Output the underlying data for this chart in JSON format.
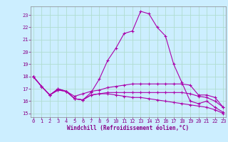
{
  "xlabel": "Windchill (Refroidissement éolien,°C)",
  "background_color": "#cceeff",
  "grid_color": "#b0ddd0",
  "line_color": "#aa00aa",
  "spine_color": "#888888",
  "x": [
    0,
    1,
    2,
    3,
    4,
    5,
    6,
    7,
    8,
    9,
    10,
    11,
    12,
    13,
    14,
    15,
    16,
    17,
    18,
    19,
    20,
    21,
    22,
    23
  ],
  "series": [
    [
      18.0,
      17.2,
      16.5,
      17.0,
      16.8,
      16.2,
      16.1,
      16.7,
      17.8,
      19.3,
      20.3,
      21.5,
      21.7,
      23.3,
      23.1,
      22.0,
      21.3,
      19.0,
      17.5,
      16.0,
      15.8,
      16.0,
      15.5,
      15.1
    ],
    [
      18.0,
      17.2,
      16.5,
      17.0,
      16.8,
      16.4,
      16.6,
      16.8,
      16.9,
      17.1,
      17.2,
      17.3,
      17.4,
      17.4,
      17.4,
      17.4,
      17.4,
      17.4,
      17.4,
      17.3,
      16.5,
      16.5,
      16.3,
      15.5
    ],
    [
      18.0,
      17.2,
      16.5,
      16.9,
      16.8,
      16.2,
      16.1,
      16.5,
      16.6,
      16.7,
      16.7,
      16.7,
      16.7,
      16.7,
      16.7,
      16.7,
      16.7,
      16.7,
      16.7,
      16.6,
      16.4,
      16.3,
      16.0,
      15.5
    ],
    [
      18.0,
      17.2,
      16.5,
      16.9,
      16.8,
      16.2,
      16.1,
      16.5,
      16.6,
      16.6,
      16.5,
      16.4,
      16.3,
      16.3,
      16.2,
      16.1,
      16.0,
      15.9,
      15.8,
      15.7,
      15.6,
      15.5,
      15.3,
      15.0
    ]
  ],
  "ylim": [
    14.7,
    23.7
  ],
  "yticks": [
    15,
    16,
    17,
    18,
    19,
    20,
    21,
    22,
    23
  ],
  "xticks": [
    0,
    1,
    2,
    3,
    4,
    5,
    6,
    7,
    8,
    9,
    10,
    11,
    12,
    13,
    14,
    15,
    16,
    17,
    18,
    19,
    20,
    21,
    22,
    23
  ],
  "xlim": [
    -0.3,
    23.3
  ],
  "tick_fontsize": 5.0,
  "xlabel_fontsize": 5.5,
  "label_color": "#880088"
}
